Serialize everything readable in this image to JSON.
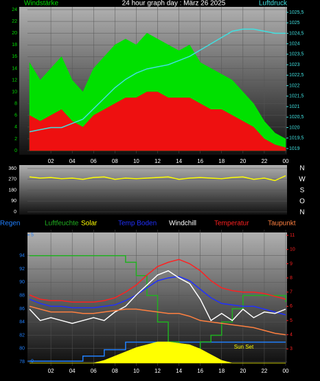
{
  "chart_data": [
    {
      "type": "line",
      "title": "24 hour graph day : März 26 2025",
      "y_label": "Windstärke",
      "y2_label": "Luftdruck",
      "x": [
        0,
        1,
        2,
        3,
        4,
        5,
        6,
        7,
        8,
        9,
        10,
        11,
        12,
        13,
        14,
        15,
        16,
        17,
        18,
        19,
        20,
        21,
        22,
        23,
        24
      ],
      "xlim": [
        0,
        24
      ],
      "xticks": [
        {
          "value": 2,
          "label": "02"
        },
        {
          "value": 4,
          "label": "04"
        },
        {
          "value": 6,
          "label": "06"
        },
        {
          "value": 8,
          "label": "08"
        },
        10,
        12,
        14,
        16,
        18,
        20,
        22,
        {
          "value": 24,
          "label": "00"
        }
      ],
      "ylim": [
        0,
        24
      ],
      "yticks": [
        0,
        2,
        4,
        6,
        8,
        10,
        12,
        14,
        16,
        18,
        20,
        22,
        24
      ],
      "y2lim": [
        1018.9,
        1025.63
      ],
      "y2ticks": [
        1019,
        {
          "value": 1019.5,
          "label": "1019,5"
        },
        1020,
        {
          "value": 1020.5,
          "label": "1020,5"
        },
        1021,
        {
          "value": 1021.5,
          "label": "1021,5"
        },
        1022,
        {
          "value": 1022.5,
          "label": "1022,5"
        },
        1023,
        {
          "value": 1023.5,
          "label": "1023,5"
        },
        1024,
        {
          "value": 1024.5,
          "label": "1024,5"
        },
        1025,
        {
          "value": 1025.5,
          "label": "1025,5"
        }
      ],
      "series": [
        {
          "kind": "area",
          "color": "#00e000",
          "values": [
            15,
            12,
            14,
            16,
            12,
            10,
            14,
            16,
            18,
            19,
            18,
            20,
            19,
            18,
            17,
            18,
            15,
            14,
            13,
            12,
            10,
            8,
            5,
            3,
            2
          ]
        },
        {
          "kind": "area",
          "color": "#ee1010",
          "values": [
            6,
            5,
            6,
            7,
            5,
            4,
            6,
            7,
            8,
            9,
            9,
            10,
            10,
            9,
            9,
            9,
            8,
            7,
            7,
            6,
            5,
            4,
            2,
            1,
            0.5
          ]
        },
        {
          "kind": "line",
          "color": "#40e0e0",
          "axis": "y2",
          "values": [
            1019.8,
            1019.9,
            1020.0,
            1020.0,
            1020.2,
            1020.4,
            1020.9,
            1021.4,
            1021.9,
            1022.3,
            1022.6,
            1022.8,
            1022.9,
            1023.0,
            1023.2,
            1023.4,
            1023.7,
            1024.0,
            1024.3,
            1024.6,
            1024.7,
            1024.7,
            1024.6,
            1024.5,
            1024.5
          ]
        }
      ]
    },
    {
      "type": "line",
      "directions": [
        "N",
        "W",
        "S",
        "O",
        "N"
      ],
      "x": [
        0,
        1,
        2,
        3,
        4,
        5,
        6,
        7,
        8,
        9,
        10,
        11,
        12,
        13,
        14,
        15,
        16,
        17,
        18,
        19,
        20,
        21,
        22,
        23,
        24
      ],
      "xlim": [
        0,
        24
      ],
      "ylim": [
        0,
        360
      ],
      "yticks": [
        0,
        90,
        180,
        270,
        360
      ],
      "series": [
        {
          "kind": "line",
          "color": "#ffff00",
          "values": [
            290,
            280,
            285,
            275,
            280,
            270,
            285,
            290,
            270,
            280,
            275,
            280,
            285,
            290,
            270,
            280,
            285,
            280,
            275,
            285,
            290,
            270,
            280,
            260,
            300
          ]
        }
      ]
    },
    {
      "type": "line",
      "x": [
        0,
        1,
        2,
        3,
        4,
        5,
        6,
        7,
        8,
        9,
        10,
        11,
        12,
        13,
        14,
        15,
        16,
        17,
        18,
        19,
        20,
        21,
        22,
        23,
        24
      ],
      "xlim": [
        0,
        24
      ],
      "xticks": [
        {
          "value": 2,
          "label": "02"
        },
        {
          "value": 4,
          "label": "04"
        },
        {
          "value": 6,
          "label": "06"
        },
        {
          "value": 8,
          "label": "08"
        },
        10,
        12,
        14,
        16,
        18,
        20,
        22,
        {
          "value": 24,
          "label": "00"
        }
      ],
      "ylim": [
        77.8,
        97.5
      ],
      "yticks": [
        78,
        80,
        82,
        84,
        86,
        88,
        90,
        92,
        94
      ],
      "y2lim": [
        2.0,
        11.2
      ],
      "y2ticks": [
        3,
        4,
        5,
        6,
        7,
        8,
        9,
        10,
        11
      ],
      "y3lim": [
        -0.08,
        5.1
      ],
      "y3ticks": [
        0,
        5
      ],
      "annotation": "Sun Set",
      "series": [
        {
          "name": "Regen",
          "kind": "step",
          "color": "#2080ff",
          "axis": "y3",
          "values": [
            0,
            0,
            0,
            0,
            0,
            0.2,
            0.2,
            0.45,
            0.45,
            0.75,
            0.75,
            0.75,
            0.75,
            0.75,
            0.75,
            0.75,
            0.75,
            0.75,
            0.75,
            0.75,
            0.75,
            0.75,
            0.75,
            0.75,
            0.75
          ]
        },
        {
          "name": "Luftfeuchte",
          "kind": "step",
          "color": "#20b020",
          "values": [
            94,
            94,
            94,
            94,
            94,
            94,
            94,
            94,
            94,
            93,
            91,
            88,
            84,
            81,
            80,
            80,
            81,
            82,
            84,
            86,
            88,
            88,
            88,
            88,
            87
          ]
        },
        {
          "name": "Solar",
          "kind": "area",
          "color": "#ffff00",
          "axis": "y2",
          "values": [
            2.0,
            2.0,
            2.0,
            2.0,
            2.0,
            2.0,
            2.0,
            2.2,
            2.5,
            2.8,
            3.1,
            3.3,
            3.5,
            3.5,
            3.4,
            3.3,
            3.0,
            2.6,
            2.2,
            2.0,
            2.0,
            2.0,
            2.0,
            2.0,
            2.0
          ]
        },
        {
          "name": "Temp Boden",
          "kind": "line",
          "color": "#2030ff",
          "axis": "y2",
          "values": [
            6.5,
            6.2,
            6.0,
            6.0,
            5.9,
            5.9,
            5.9,
            6.0,
            6.1,
            6.4,
            6.8,
            7.3,
            7.8,
            8.0,
            8.1,
            7.8,
            7.2,
            6.6,
            6.2,
            6.1,
            6.0,
            6.0,
            5.8,
            5.6,
            5.4
          ]
        },
        {
          "name": "Windchill",
          "kind": "line",
          "color": "#ffffff",
          "axis": "y2",
          "values": [
            5.8,
            5.0,
            5.2,
            5.0,
            4.8,
            5.0,
            5.2,
            5.0,
            5.6,
            6.0,
            6.8,
            7.5,
            8.2,
            8.5,
            8.0,
            7.6,
            6.5,
            5.0,
            5.5,
            5.0,
            5.8,
            5.2,
            5.6,
            5.5,
            5.8
          ]
        },
        {
          "name": "Temperatur",
          "kind": "line",
          "color": "#ff2020",
          "axis": "y2",
          "values": [
            6.8,
            6.5,
            6.4,
            6.4,
            6.3,
            6.3,
            6.3,
            6.4,
            6.6,
            7.0,
            7.5,
            8.2,
            8.8,
            9.1,
            9.3,
            9.0,
            8.5,
            7.8,
            7.3,
            7.1,
            7.0,
            7.0,
            6.9,
            6.7,
            6.5
          ]
        },
        {
          "name": "Taupunkt",
          "kind": "line",
          "color": "#ff8040",
          "axis": "y2",
          "values": [
            6.0,
            5.8,
            5.6,
            5.6,
            5.6,
            5.5,
            5.5,
            5.6,
            5.7,
            5.8,
            5.8,
            5.7,
            5.6,
            5.5,
            5.5,
            5.3,
            5.0,
            4.9,
            4.8,
            4.7,
            4.6,
            4.5,
            4.3,
            4.1,
            4.0
          ]
        }
      ]
    }
  ]
}
